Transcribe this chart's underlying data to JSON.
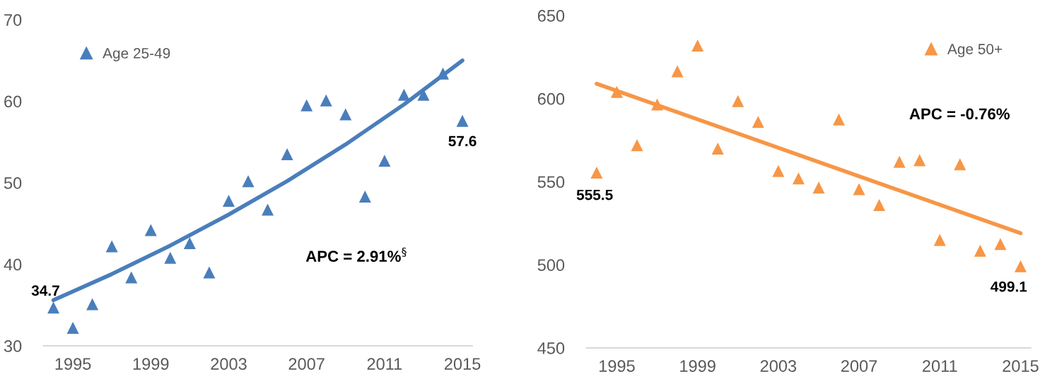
{
  "chart_data": [
    {
      "type": "scatter",
      "x": [
        1994,
        1995,
        1996,
        1997,
        1998,
        1999,
        2000,
        2001,
        2002,
        2003,
        2004,
        2005,
        2006,
        2007,
        2008,
        2009,
        2010,
        2011,
        2012,
        2013,
        2014,
        2015
      ],
      "series": [
        {
          "name": "Age 25-49",
          "color": "#4a7ebb",
          "marker": "triangle",
          "values": [
            34.7,
            32.2,
            35.1,
            42.2,
            38.4,
            44.2,
            40.8,
            42.6,
            39.0,
            47.8,
            50.2,
            46.7,
            53.5,
            59.5,
            60.1,
            58.4,
            48.3,
            52.7,
            60.8,
            60.8,
            63.4,
            57.6
          ],
          "value_labels": [
            "34.7",
            null,
            null,
            null,
            null,
            null,
            null,
            null,
            null,
            null,
            null,
            null,
            null,
            null,
            null,
            null,
            null,
            null,
            null,
            null,
            null,
            "57.6"
          ]
        },
        {
          "type": "line",
          "color": "#4a7ebb",
          "line_style": "solid",
          "marker": "none",
          "x": [
            1994,
            1997,
            2000,
            2003,
            2006,
            2009,
            2012,
            2015
          ],
          "values": [
            35.6,
            38.8,
            42.3,
            46.1,
            50.2,
            54.7,
            59.6,
            65.0
          ]
        }
      ],
      "annotations": [
        "APC = 2.91%$^{§}$"
      ],
      "xlim": [
        1993.5,
        2015.5
      ],
      "xticks": [
        1995,
        1999,
        2003,
        2007,
        2011,
        2015
      ],
      "ylim": [
        30,
        70
      ],
      "yticks": [
        30,
        40,
        50,
        60,
        70
      ],
      "grid": false,
      "legend": "top left"
    },
    {
      "type": "scatter",
      "x": [
        1994,
        1995,
        1996,
        1997,
        1998,
        1999,
        2000,
        2001,
        2002,
        2003,
        2004,
        2005,
        2006,
        2007,
        2008,
        2009,
        2010,
        2011,
        2012,
        2013,
        2014,
        2015
      ],
      "series": [
        {
          "name": "Age 50+",
          "color": "#f79646",
          "marker": "triangle",
          "values": [
            555.5,
            604,
            572,
            596.5,
            616.5,
            632,
            570,
            598.5,
            586,
            556.5,
            552,
            546.5,
            587.5,
            545.5,
            536,
            562,
            563,
            515,
            560.5,
            508.5,
            512.5,
            499.1
          ],
          "value_labels": [
            "555.5",
            null,
            null,
            null,
            null,
            null,
            null,
            null,
            null,
            null,
            null,
            null,
            null,
            null,
            null,
            null,
            null,
            null,
            null,
            null,
            null,
            "499.1"
          ]
        },
        {
          "type": "line",
          "color": "#f79646",
          "line_style": "solid",
          "marker": "none",
          "x": [
            1994,
            2015
          ],
          "values": [
            609,
            519
          ]
        }
      ],
      "annotations": [
        "APC = -0.76%"
      ],
      "xlim": [
        1993.5,
        2015.5
      ],
      "xticks": [
        1995,
        1999,
        2003,
        2007,
        2011,
        2015
      ],
      "ylim": [
        450,
        650
      ],
      "yticks": [
        450,
        500,
        550,
        600,
        650
      ],
      "grid": false,
      "legend": "top right"
    }
  ]
}
